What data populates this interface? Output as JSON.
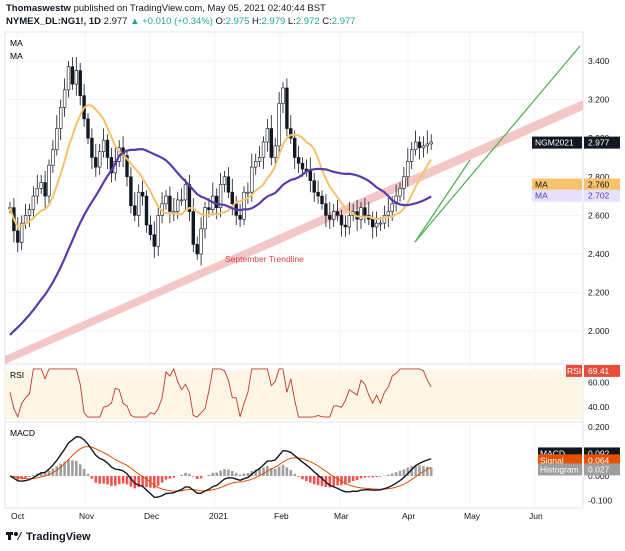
{
  "header": {
    "author": "Thomaswestw",
    "published": "published on TradingView.com, May 05, 2021 02:40:44 BST",
    "symbol": "NYMEX_DL:NG1!, 1D",
    "last": "2.977",
    "change": "▲ +0.010 (+0.34%)",
    "open": "2.975",
    "high": "2.979",
    "low": "2.972",
    "close": "2.977"
  },
  "footer": {
    "brand": "TradingView"
  },
  "colors": {
    "up": "#26a69a",
    "down": "#131722",
    "ma_fast": "#f6c26b",
    "ma_slow": "#5b3bab",
    "trend_band": "#f0b4b4",
    "green_line": "#4caf50",
    "rsi": "#c0392b",
    "macd": "#131722",
    "signal": "#e65100",
    "hist_pos": "#9e9e9e",
    "hist_neg": "#ef5350"
  },
  "chart_data": [
    {
      "type": "candlestick",
      "panel": "price",
      "legend": [
        "MA",
        "MA"
      ],
      "x_ticks": [
        "Oct",
        "Nov",
        "Dec",
        "2021",
        "Feb",
        "Mar",
        "Apr",
        "May",
        "Jun"
      ],
      "y_ticks": [
        "3.400",
        "3.200",
        "3.000",
        "2.800",
        "2.600",
        "2.400",
        "2.200",
        "2.000"
      ],
      "ylim": [
        1.83,
        3.55
      ],
      "annotations": [
        "September Trendline"
      ],
      "labels": [
        {
          "name": "NGM2021",
          "value": "2.977"
        },
        {
          "name": "MA",
          "value": "2.760"
        },
        {
          "name": "MA",
          "value": "2.702"
        }
      ],
      "series_approx_close": [
        2.64,
        2.52,
        2.46,
        2.56,
        2.6,
        2.63,
        2.7,
        2.74,
        2.77,
        2.7,
        2.86,
        2.94,
        3.05,
        3.16,
        3.25,
        3.37,
        3.28,
        3.35,
        3.22,
        3.1,
        3.0,
        2.9,
        2.85,
        2.93,
        2.99,
        2.9,
        2.82,
        2.88,
        2.95,
        2.91,
        2.8,
        2.65,
        2.6,
        2.72,
        2.7,
        2.55,
        2.5,
        2.44,
        2.6,
        2.66,
        2.7,
        2.62,
        2.62,
        2.68,
        2.68,
        2.76,
        2.62,
        2.45,
        2.4,
        2.53,
        2.64,
        2.63,
        2.7,
        2.64,
        2.76,
        2.8,
        2.72,
        2.66,
        2.6,
        2.58,
        2.72,
        2.72,
        2.85,
        2.88,
        2.9,
        2.98,
        3.05,
        2.9,
        2.96,
        3.18,
        3.26,
        3.05,
        3.0,
        2.9,
        2.87,
        2.84,
        2.83,
        2.78,
        2.72,
        2.7,
        2.66,
        2.6,
        2.58,
        2.62,
        2.6,
        2.55,
        2.54,
        2.6,
        2.62,
        2.58,
        2.64,
        2.6,
        2.58,
        2.54,
        2.56,
        2.56,
        2.6,
        2.62,
        2.66,
        2.7,
        2.74,
        2.8,
        2.88,
        2.94,
        2.98,
        2.95,
        2.96,
        2.97,
        2.98
      ]
    },
    {
      "type": "line",
      "panel": "rsi",
      "legend": [
        "RSI"
      ],
      "label": {
        "name": "RSI",
        "value": "69.41"
      },
      "y_ticks": [
        "60.00",
        "40.00"
      ],
      "ylim": [
        28,
        75
      ],
      "band": [
        30,
        70
      ]
    },
    {
      "type": "line+histogram",
      "panel": "macd",
      "legend": [
        "MACD"
      ],
      "y_ticks": [
        "0.200",
        "0.100",
        "0.000",
        "-0.100"
      ],
      "ylim": [
        -0.13,
        0.22
      ],
      "labels": [
        {
          "name": "MACD",
          "value": "0.092"
        },
        {
          "name": "Signal",
          "value": "0.064"
        },
        {
          "name": "Histogram",
          "value": "0.027"
        }
      ]
    }
  ]
}
